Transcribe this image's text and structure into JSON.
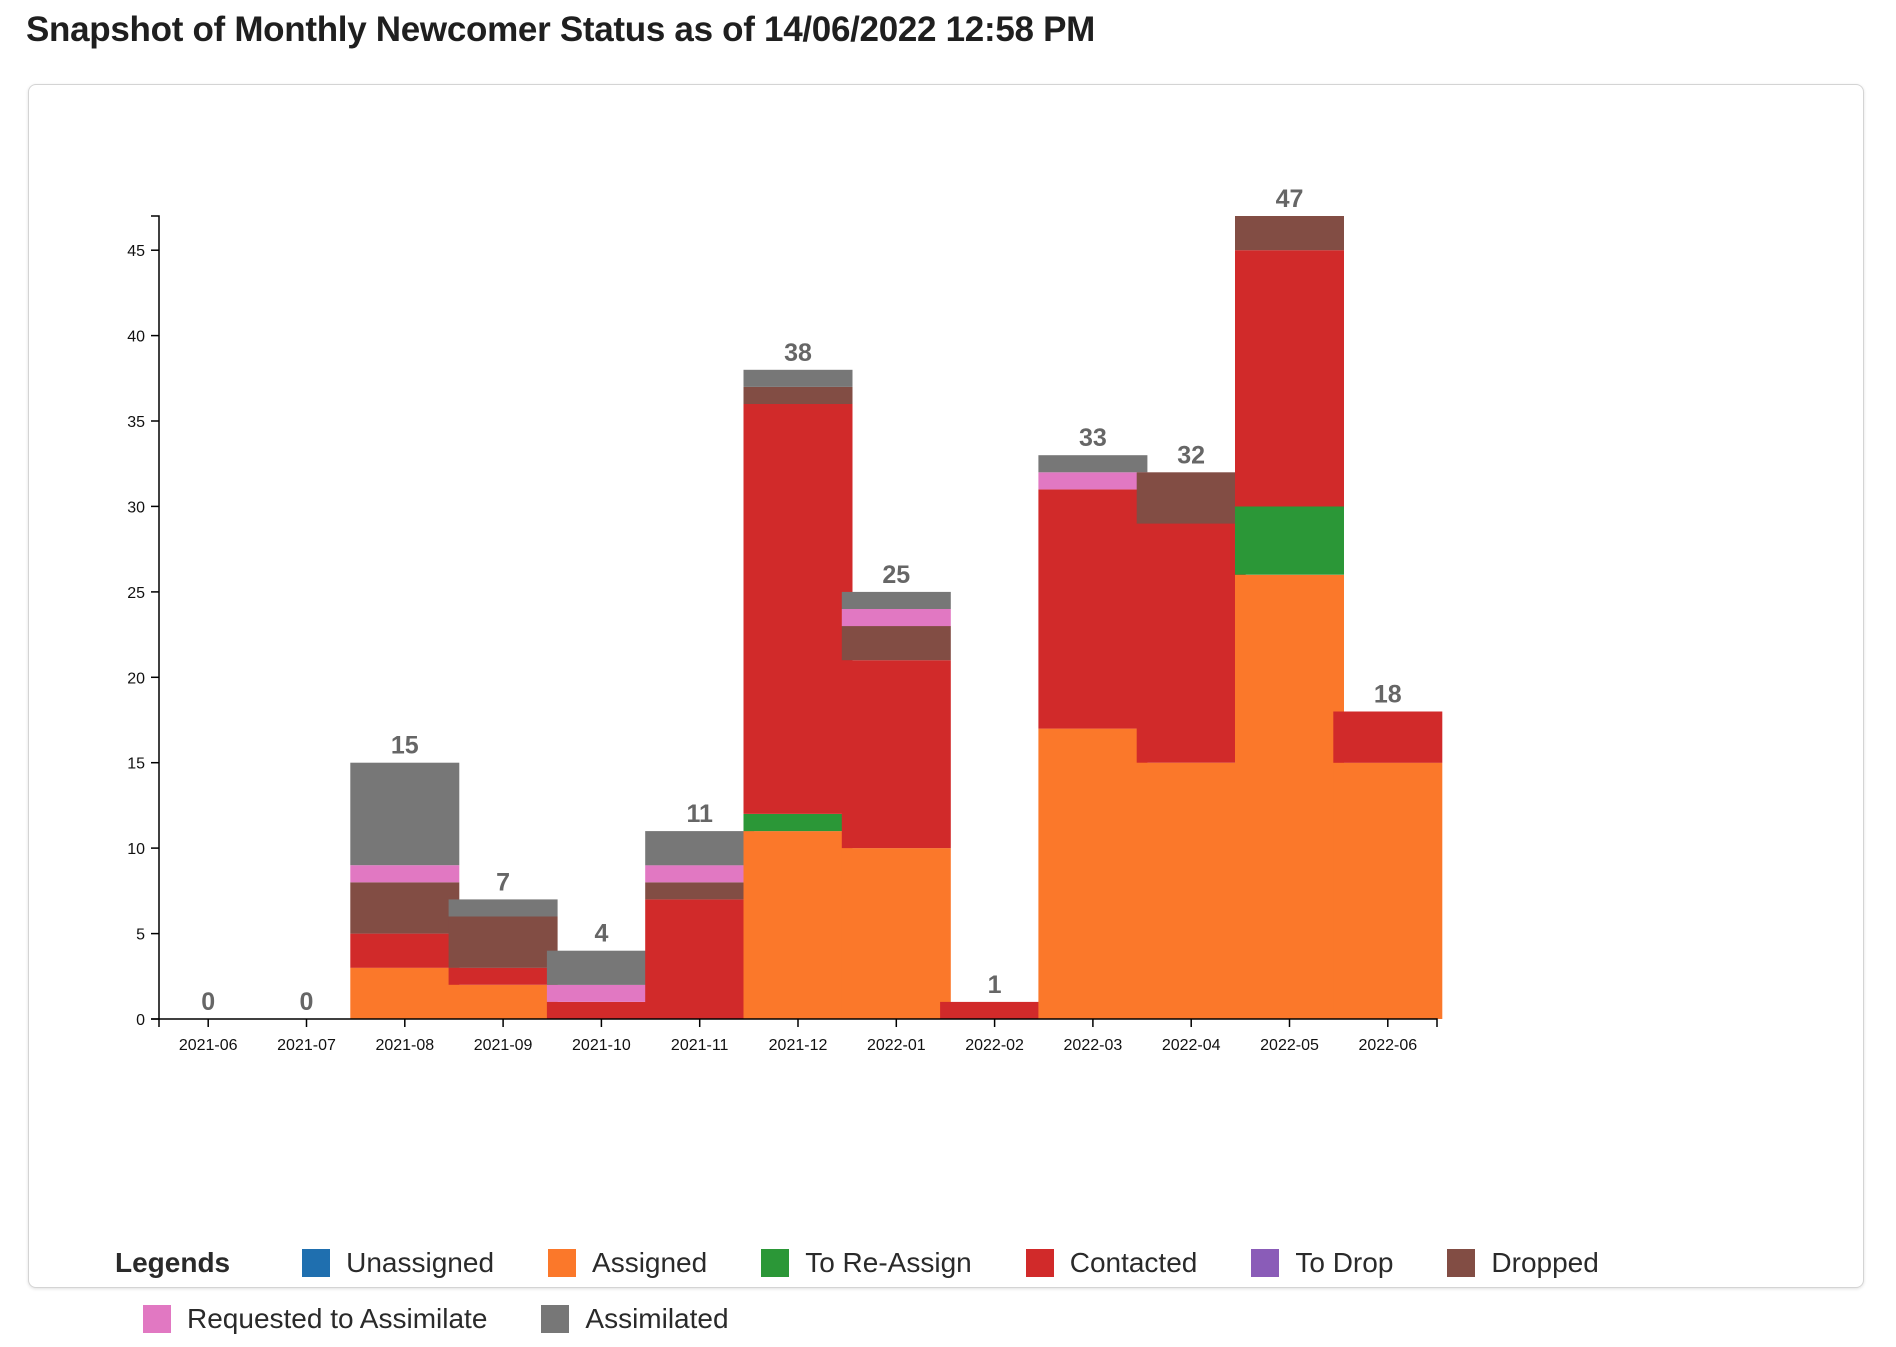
{
  "title": "Snapshot of Monthly Newcomer Status as of 14/06/2022 12:58 PM",
  "legend_title": "Legends",
  "chart_data": {
    "type": "bar",
    "stacked": true,
    "categories": [
      "2021-06",
      "2021-07",
      "2021-08",
      "2021-09",
      "2021-10",
      "2021-11",
      "2021-12",
      "2022-01",
      "2022-02",
      "2022-03",
      "2022-04",
      "2022-05",
      "2022-06"
    ],
    "series": [
      {
        "name": "Unassigned",
        "color": "#1f6faf",
        "values": [
          0,
          0,
          0,
          0,
          0,
          0,
          0,
          0,
          0,
          0,
          0,
          0,
          0
        ]
      },
      {
        "name": "Assigned",
        "color": "#fb782a",
        "values": [
          0,
          0,
          3,
          2,
          0,
          0,
          11,
          10,
          0,
          17,
          15,
          26,
          15
        ]
      },
      {
        "name": "To Re-Assign",
        "color": "#2b9737",
        "values": [
          0,
          0,
          0,
          0,
          0,
          0,
          1,
          0,
          0,
          0,
          0,
          4,
          0
        ]
      },
      {
        "name": "Contacted",
        "color": "#d12a2a",
        "values": [
          0,
          0,
          2,
          1,
          1,
          7,
          24,
          11,
          1,
          14,
          14,
          15,
          3
        ]
      },
      {
        "name": "To Drop",
        "color": "#8a5cb8",
        "values": [
          0,
          0,
          0,
          0,
          0,
          0,
          0,
          0,
          0,
          0,
          0,
          0,
          0
        ]
      },
      {
        "name": "Dropped",
        "color": "#824d44",
        "values": [
          0,
          0,
          3,
          3,
          0,
          1,
          1,
          2,
          0,
          0,
          3,
          2,
          0
        ]
      },
      {
        "name": "Requested to Assimilate",
        "color": "#e178c2",
        "values": [
          0,
          0,
          1,
          0,
          1,
          1,
          0,
          1,
          0,
          1,
          0,
          0,
          0
        ]
      },
      {
        "name": "Assimilated",
        "color": "#777777",
        "values": [
          0,
          0,
          6,
          1,
          2,
          2,
          1,
          1,
          0,
          1,
          0,
          0,
          0
        ]
      }
    ],
    "totals": [
      0,
      0,
      15,
      7,
      4,
      11,
      38,
      25,
      1,
      33,
      32,
      47,
      18
    ],
    "y_ticks": [
      0,
      5,
      10,
      15,
      20,
      25,
      30,
      35,
      40,
      45
    ],
    "ylim": [
      0,
      47
    ],
    "grid": false,
    "legend_position": "bottom"
  }
}
